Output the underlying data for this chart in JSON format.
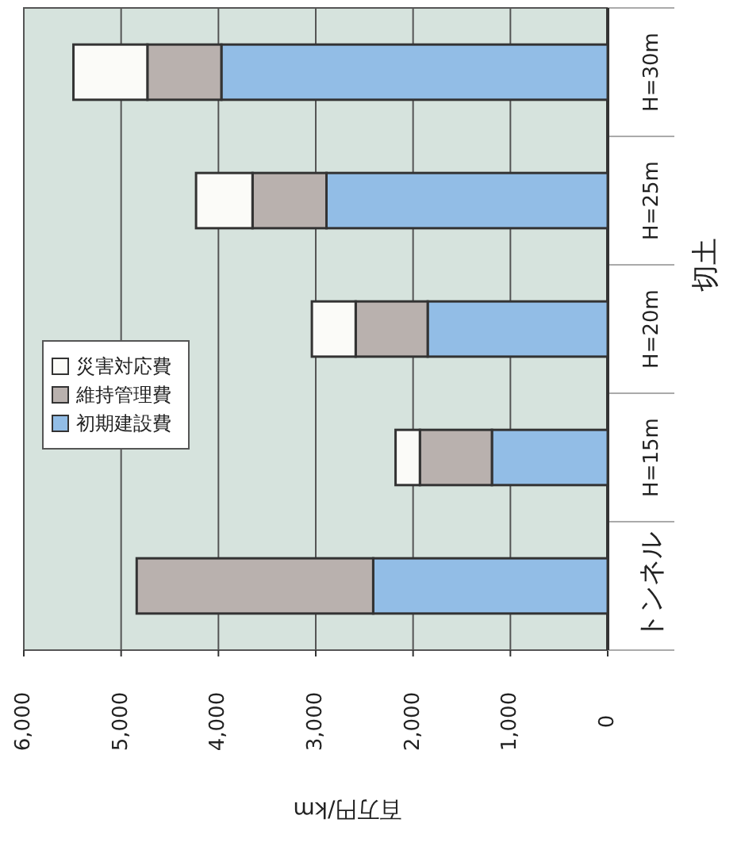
{
  "chart_data": {
    "type": "bar",
    "stacked": true,
    "orientation": "horizontal",
    "xlabel": "百万円/km",
    "categories": [
      "H=30m",
      "H=25m",
      "H=20m",
      "H=15m",
      "トンネル"
    ],
    "series": [
      {
        "name": "初期建設費",
        "color": "#92bde6",
        "values": [
          3970,
          2890,
          1850,
          1190,
          2410
        ]
      },
      {
        "name": "維持管理費",
        "color": "#b9b1ae",
        "values": [
          760,
          760,
          740,
          740,
          2430
        ]
      },
      {
        "name": "災害対応費",
        "color": "#fbfbf8",
        "values": [
          760,
          580,
          450,
          250,
          0
        ]
      }
    ],
    "xlim": [
      6000,
      0
    ],
    "xticks": [
      {
        "value": 6000,
        "label": "6,000"
      },
      {
        "value": 5000,
        "label": "5,000"
      },
      {
        "value": 4000,
        "label": "4,000"
      },
      {
        "value": 3000,
        "label": "3,000"
      },
      {
        "value": 2000,
        "label": "2,000"
      },
      {
        "value": 1000,
        "label": "1,000"
      },
      0
    ],
    "grid": "x",
    "legend": "left",
    "annotations": [
      "切土"
    ]
  }
}
